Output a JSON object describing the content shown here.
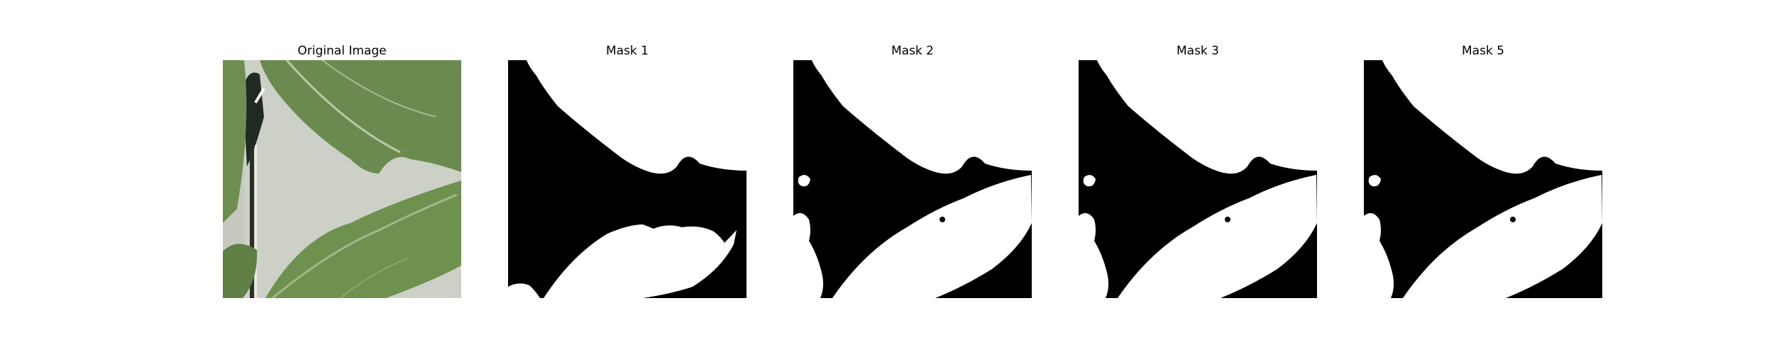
{
  "panels": [
    {
      "title": "Original Image",
      "kind": "photo"
    },
    {
      "title": "Mask 1",
      "kind": "mask"
    },
    {
      "title": "Mask 2",
      "kind": "mask"
    },
    {
      "title": "Mask 3",
      "kind": "mask"
    },
    {
      "title": "Mask 5",
      "kind": "mask"
    }
  ],
  "colors": {
    "background": "#ffffff",
    "mask_background": "#000000",
    "mask_foreground": "#ffffff",
    "leaf_green": "#6b8a4f",
    "leaf_dark": "#4a6b35",
    "wall": "#c9ccc1"
  }
}
